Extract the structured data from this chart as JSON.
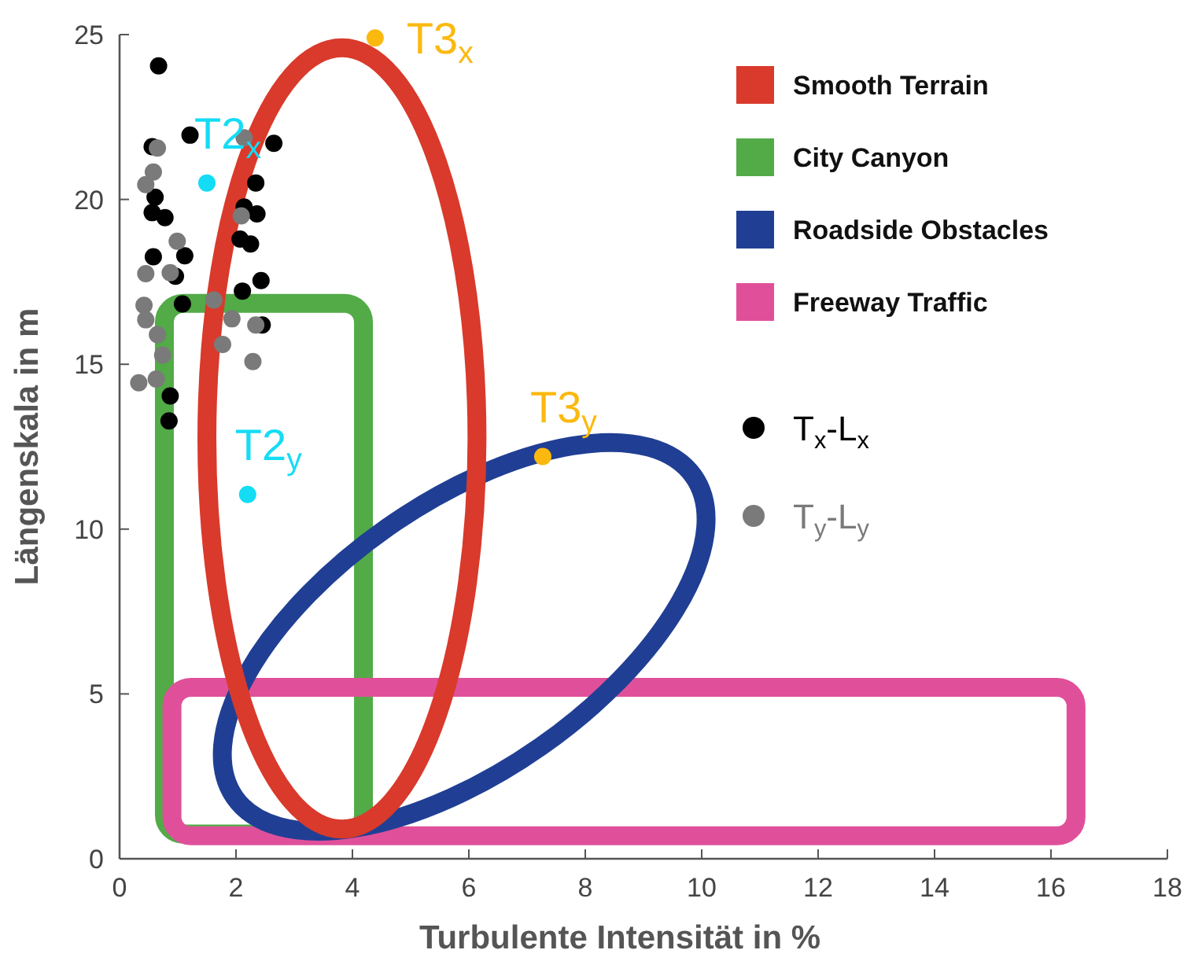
{
  "chart_data": {
    "type": "scatter",
    "xlabel": "Turbulente Intensität in %",
    "ylabel": "Längenskala in m",
    "xlim": [
      0,
      18
    ],
    "ylim": [
      0,
      25
    ],
    "xticks": [
      0,
      2,
      4,
      6,
      8,
      10,
      12,
      14,
      16,
      18
    ],
    "yticks": [
      0,
      5,
      10,
      15,
      20,
      25
    ],
    "grid": false,
    "legend": "right",
    "series": [
      {
        "type": "scatter",
        "marker": "circle",
        "name": "T$_{x}$-L$_{x}$",
        "color": "#000000",
        "x": [
          0.67,
          1.21,
          0.56,
          2.65,
          2.34,
          0.61,
          2.14,
          0.56,
          0.78,
          2.36,
          2.07,
          2.25,
          0.58,
          1.12,
          0.96,
          2.43,
          2.11,
          1.08,
          2.45,
          0.87,
          0.85
        ],
        "values": [
          24.05,
          21.95,
          21.6,
          21.7,
          20.5,
          20.07,
          19.77,
          19.6,
          19.45,
          19.56,
          18.8,
          18.65,
          18.26,
          18.29,
          17.67,
          17.54,
          17.22,
          16.83,
          16.19,
          14.04,
          13.28
        ]
      },
      {
        "type": "scatter",
        "marker": "circle",
        "name": "T$_{y}$-L$_{y}$",
        "color": "#7a7a7a",
        "x": [
          0.65,
          0.58,
          0.45,
          2.14,
          2.09,
          0.99,
          0.45,
          0.87,
          0.42,
          0.45,
          0.65,
          0.74,
          0.33,
          0.63,
          1.62,
          1.93,
          2.34,
          1.77,
          2.29
        ],
        "values": [
          21.56,
          20.83,
          20.45,
          21.87,
          19.5,
          18.73,
          17.75,
          17.78,
          16.79,
          16.35,
          15.9,
          15.28,
          14.44,
          14.55,
          16.95,
          16.38,
          16.19,
          15.6,
          15.08
        ]
      },
      {
        "type": "scatter",
        "marker": "circle",
        "color": "#14dcf5",
        "x": [
          1.5,
          2.2
        ],
        "values": [
          20.5,
          11.05
        ]
      },
      {
        "type": "scatter",
        "marker": "circle",
        "color": "#fbb910",
        "x": [
          4.39,
          7.27
        ],
        "values": [
          24.9,
          12.2
        ]
      }
    ],
    "annotations": [
      "Smooth Terrain",
      "City Canyon",
      "Roadside Obstacles",
      "Freeway Traffic",
      {
        "text": "T2$_{x}$",
        "x": 1.5,
        "y": 20.5
      },
      {
        "text": "T2$_{y}$",
        "x": 2.2,
        "y": 11.05
      },
      {
        "text": "T3$_{x}$",
        "x": 4.39,
        "y": 24.9
      },
      {
        "text": "T3$_{y}$",
        "x": 7.27,
        "y": 12.2
      }
    ]
  }
}
